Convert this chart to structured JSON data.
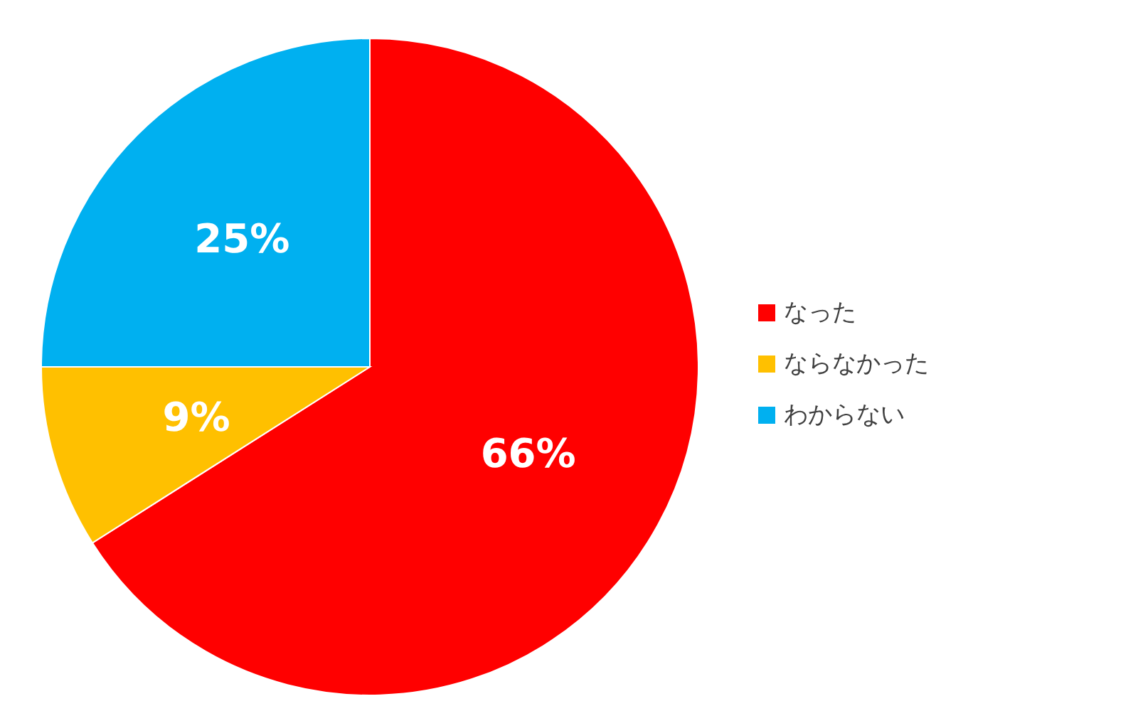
{
  "chart_data": {
    "type": "pie",
    "categories": [
      "なった",
      "ならなかった",
      "わからない"
    ],
    "values": [
      66,
      9,
      25
    ],
    "colors": [
      "#ff0000",
      "#ffc000",
      "#00b0f0"
    ],
    "value_labels": [
      "66%",
      "9%",
      "25%"
    ],
    "legend": "right"
  }
}
